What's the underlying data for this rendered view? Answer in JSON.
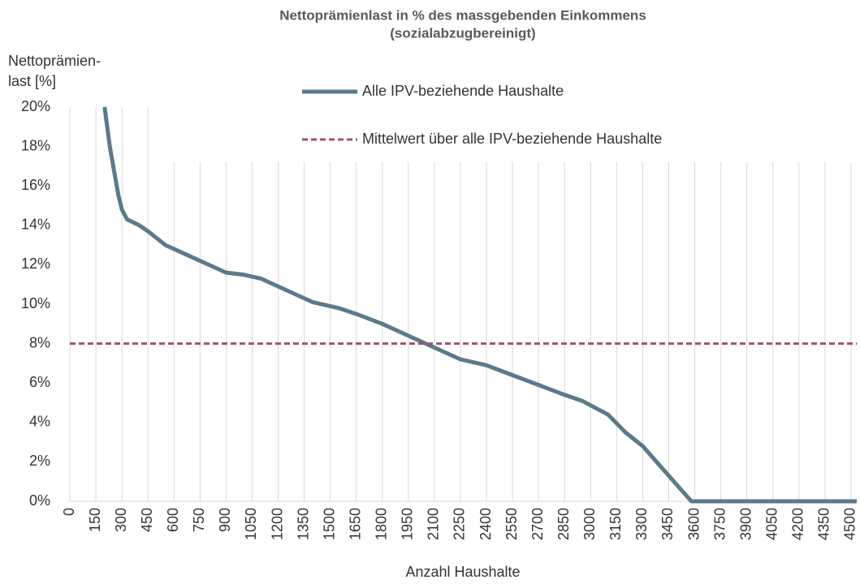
{
  "chart_data": {
    "type": "line",
    "title": [
      "Nettoprämienlast in % des massgebenden Einkommens",
      "(sozialabzugbereinigt)"
    ],
    "ylabel": [
      "Nettoprämien-",
      "last [%]"
    ],
    "xlabel": "Anzahl Haushalte",
    "xlim": [
      0,
      4533
    ],
    "ylim": [
      0,
      20
    ],
    "xticks": [
      0,
      150,
      300,
      450,
      600,
      750,
      900,
      1050,
      1200,
      1350,
      1500,
      1650,
      1800,
      1950,
      2100,
      2250,
      2400,
      2550,
      2700,
      2850,
      3000,
      3150,
      3300,
      3450,
      3600,
      3750,
      3900,
      4050,
      4200,
      4350,
      4500
    ],
    "yticks": [
      {
        "value": 0,
        "label": "0%"
      },
      {
        "value": 2,
        "label": "2%"
      },
      {
        "value": 4,
        "label": "4%"
      },
      {
        "value": 6,
        "label": "6%"
      },
      {
        "value": 8,
        "label": "8%"
      },
      {
        "value": 10,
        "label": "10%"
      },
      {
        "value": 12,
        "label": "12%"
      },
      {
        "value": 14,
        "label": "14%"
      },
      {
        "value": 16,
        "label": "16%"
      },
      {
        "value": 18,
        "label": "18%"
      },
      {
        "value": 20,
        "label": "20%"
      }
    ],
    "grid": "x",
    "series": [
      {
        "name": "Alle IPV-beziehende Haushalte",
        "color": "#5b7a8a",
        "dash": false,
        "x": [
          200,
          230,
          260,
          280,
          300,
          330,
          400,
          450,
          550,
          650,
          800,
          900,
          1000,
          1100,
          1200,
          1300,
          1400,
          1550,
          1650,
          1800,
          1950,
          2100,
          2250,
          2400,
          2550,
          2700,
          2850,
          2950,
          3100,
          3200,
          3300,
          3400,
          3500,
          3580,
          4533
        ],
        "values": [
          20,
          18,
          16.5,
          15.5,
          14.8,
          14.3,
          14,
          13.7,
          13,
          12.6,
          12,
          11.6,
          11.5,
          11.3,
          10.9,
          10.5,
          10.1,
          9.8,
          9.5,
          9,
          8.4,
          7.8,
          7.2,
          6.9,
          6.4,
          5.9,
          5.4,
          5.1,
          4.4,
          3.5,
          2.8,
          1.8,
          0.8,
          0,
          0
        ]
      },
      {
        "name": "Mittelwert über alle IPV-beziehende Haushalte",
        "color": "#a5506b",
        "dash": true,
        "x": [
          0,
          4533
        ],
        "values": [
          8,
          8
        ]
      }
    ]
  }
}
